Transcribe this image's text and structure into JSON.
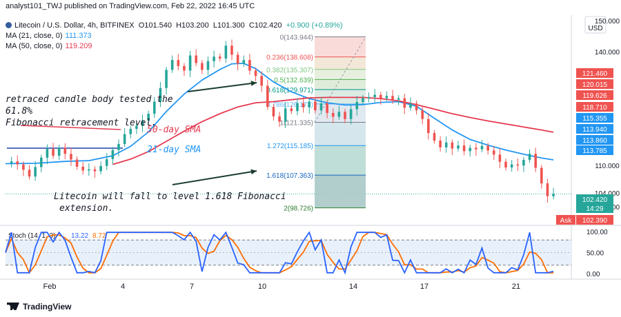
{
  "header": {
    "publisher": "analyst101_TWJ published on TradingView.com, Feb 22, 2022 16:45 UTC"
  },
  "legend": {
    "symbol": "Litecoin / U.S. Dollar, 4h, BITFINEX",
    "open": "O101.540",
    "high": "H103.200",
    "low": "L101.300",
    "close": "C102.420",
    "change": "+0.900 (+0.89%)",
    "ma21_label": "MA (21, close, 0)",
    "ma21_value": "111.373",
    "ma50_label": "MA (50, close, 0)",
    "ma50_value": "119.209",
    "stoch_label": "Stoch (14, 1, 3)",
    "stoch_k": "13.22",
    "stoch_d": "8.72"
  },
  "annotations": {
    "text1_line1": "retraced candle body tested the 61.8%",
    "text1_line2": "Fibonacci retracement level.",
    "sma50": "50-day SMA",
    "sma21": "21-day SMA",
    "text2_line1": "Litecoin will fall to level 1.618 Fibonacci",
    "text2_line2": "extension."
  },
  "footer": {
    "brand": "TradingView"
  },
  "colors": {
    "up": "#26a69a",
    "down": "#ef5350",
    "ma21": "#2196f3",
    "ma50": "#e53950",
    "stoch_k": "#2962ff",
    "stoch_d": "#ff6d00",
    "stoch_band": "#e8f0fb"
  },
  "chart_data": {
    "type": "candlestick",
    "price_axis": {
      "unit": "USD",
      "ticks": [
        "150.000",
        "140.000",
        "110.000",
        "104.000",
        "100.000"
      ],
      "tick_values": [
        150,
        140,
        110,
        104,
        100
      ],
      "badges": [
        {
          "text": "121.460",
          "value": 121.46,
          "color": "#ef5350"
        },
        {
          "text": "120.015",
          "value": 120.015,
          "color": "#ef5350"
        },
        {
          "text": "119.626",
          "value": 119.626,
          "color": "#ef5350"
        },
        {
          "text": "118.710",
          "value": 118.71,
          "color": "#ef5350"
        },
        {
          "text": "115.355",
          "value": 115.355,
          "color": "#2196f3"
        },
        {
          "text": "113.940",
          "value": 113.94,
          "color": "#2196f3"
        },
        {
          "text": "113.860",
          "value": 113.86,
          "color": "#2196f3"
        },
        {
          "text": "113.785",
          "value": 113.785,
          "color": "#2196f3"
        },
        {
          "text": "102.420",
          "value": 102.42,
          "color": "#26a69a"
        },
        {
          "text": "14:29",
          "value": 101.2,
          "color": "#26a69a"
        }
      ],
      "ask_label": "Ask",
      "ask_value": "102.390"
    },
    "time_axis": [
      "Feb",
      "4",
      "7",
      "10",
      "14",
      "17",
      "21"
    ],
    "stoch_axis": [
      "100.00",
      "50.00",
      "0.00"
    ],
    "fibonacci": [
      {
        "ratio": "0",
        "price": 143.944
      },
      {
        "ratio": "0.236",
        "price": 138.608
      },
      {
        "ratio": "0.382",
        "price": 135.307
      },
      {
        "ratio": "0.5",
        "price": 132.639
      },
      {
        "ratio": "0.618",
        "price": 129.971
      },
      {
        "ratio": "0.786",
        "price": 126.173
      },
      {
        "ratio": "1",
        "price": 121.335
      },
      {
        "ratio": "1.272",
        "price": 115.185
      },
      {
        "ratio": "1.618",
        "price": 107.363
      },
      {
        "ratio": "2",
        "price": 98.726
      }
    ],
    "close_path": [
      [
        0,
        110.5
      ],
      [
        2,
        111.0
      ],
      [
        4,
        110.2
      ],
      [
        6,
        108.8
      ],
      [
        8,
        107.0
      ],
      [
        10,
        109.5
      ],
      [
        12,
        112.0
      ],
      [
        14,
        114.3
      ],
      [
        16,
        112.5
      ],
      [
        18,
        114.6
      ],
      [
        20,
        113.0
      ],
      [
        22,
        111.5
      ],
      [
        24,
        109.6
      ],
      [
        26,
        108.6
      ],
      [
        28,
        108.9
      ],
      [
        30,
        108.4
      ],
      [
        32,
        109.8
      ],
      [
        34,
        111.6
      ],
      [
        36,
        114.0
      ],
      [
        38,
        115.6
      ],
      [
        40,
        118.2
      ],
      [
        42,
        119.6
      ],
      [
        44,
        120.4
      ],
      [
        46,
        121.8
      ],
      [
        48,
        123.6
      ],
      [
        50,
        126.8
      ],
      [
        52,
        130.4
      ],
      [
        54,
        135.2
      ],
      [
        56,
        137.8
      ],
      [
        58,
        136.2
      ],
      [
        60,
        135.0
      ],
      [
        62,
        139.0
      ],
      [
        64,
        137.0
      ],
      [
        66,
        135.2
      ],
      [
        68,
        137.5
      ],
      [
        70,
        138.7
      ],
      [
        72,
        138.2
      ],
      [
        74,
        141.6
      ],
      [
        76,
        139.2
      ],
      [
        78,
        136.8
      ],
      [
        80,
        137.8
      ],
      [
        82,
        135.0
      ],
      [
        84,
        133.6
      ],
      [
        86,
        131.0
      ],
      [
        88,
        125.4
      ],
      [
        90,
        122.9
      ],
      [
        92,
        121.5
      ],
      [
        94,
        125.0
      ],
      [
        96,
        124.3
      ],
      [
        98,
        126.4
      ],
      [
        100,
        125.3
      ],
      [
        102,
        126.8
      ],
      [
        104,
        124.5
      ],
      [
        106,
        126.3
      ],
      [
        108,
        123.8
      ],
      [
        110,
        122.8
      ],
      [
        112,
        124.1
      ],
      [
        114,
        122.2
      ],
      [
        116,
        124.8
      ],
      [
        118,
        126.7
      ],
      [
        120,
        127.7
      ],
      [
        122,
        128.0
      ],
      [
        124,
        128.6
      ],
      [
        126,
        127.7
      ],
      [
        128,
        128.3
      ],
      [
        130,
        127.3
      ],
      [
        132,
        127.7
      ],
      [
        134,
        125.2
      ],
      [
        136,
        126.3
      ],
      [
        138,
        124.5
      ],
      [
        140,
        122.2
      ],
      [
        142,
        118.5
      ],
      [
        144,
        116.5
      ],
      [
        146,
        114.7
      ],
      [
        148,
        116.0
      ],
      [
        150,
        114.4
      ],
      [
        152,
        115.2
      ],
      [
        154,
        113.7
      ],
      [
        156,
        114.6
      ],
      [
        158,
        114.2
      ],
      [
        160,
        115.1
      ],
      [
        162,
        113.9
      ],
      [
        164,
        112.8
      ],
      [
        166,
        110.9
      ],
      [
        168,
        109.4
      ],
      [
        170,
        110.2
      ],
      [
        172,
        109.9
      ],
      [
        174,
        111.4
      ],
      [
        176,
        113.0
      ],
      [
        178,
        109.3
      ],
      [
        180,
        105.2
      ],
      [
        182,
        101.8
      ],
      [
        184,
        102.4
      ]
    ],
    "ma21": [
      [
        0,
        110.4
      ],
      [
        10,
        110.5
      ],
      [
        20,
        111.0
      ],
      [
        28,
        111.2
      ],
      [
        36,
        112.5
      ],
      [
        42,
        115.0
      ],
      [
        48,
        118.8
      ],
      [
        54,
        124.2
      ],
      [
        60,
        128.8
      ],
      [
        66,
        132.5
      ],
      [
        72,
        135.3
      ],
      [
        76,
        136.8
      ],
      [
        80,
        136.9
      ],
      [
        84,
        135.5
      ],
      [
        90,
        132.0
      ],
      [
        96,
        129.4
      ],
      [
        102,
        127.6
      ],
      [
        108,
        126.5
      ],
      [
        114,
        125.9
      ],
      [
        120,
        126.0
      ],
      [
        126,
        126.6
      ],
      [
        132,
        126.8
      ],
      [
        138,
        125.6
      ],
      [
        144,
        122.4
      ],
      [
        150,
        119.3
      ],
      [
        156,
        116.8
      ],
      [
        162,
        115.3
      ],
      [
        168,
        114.0
      ],
      [
        174,
        112.9
      ],
      [
        180,
        111.9
      ],
      [
        184,
        111.4
      ]
    ],
    "ma50": [
      [
        36,
        110.2
      ],
      [
        42,
        111.6
      ],
      [
        48,
        113.6
      ],
      [
        54,
        116.3
      ],
      [
        60,
        119.0
      ],
      [
        66,
        121.5
      ],
      [
        72,
        123.6
      ],
      [
        78,
        125.4
      ],
      [
        84,
        126.5
      ],
      [
        90,
        126.8
      ],
      [
        96,
        127.3
      ],
      [
        102,
        127.8
      ],
      [
        108,
        127.9
      ],
      [
        114,
        127.9
      ],
      [
        120,
        127.9
      ],
      [
        126,
        127.6
      ],
      [
        132,
        127.0
      ],
      [
        138,
        126.0
      ],
      [
        144,
        124.8
      ],
      [
        150,
        123.6
      ],
      [
        156,
        122.6
      ],
      [
        162,
        121.7
      ],
      [
        168,
        120.9
      ],
      [
        174,
        120.1
      ],
      [
        180,
        119.3
      ],
      [
        184,
        118.7
      ]
    ]
  }
}
